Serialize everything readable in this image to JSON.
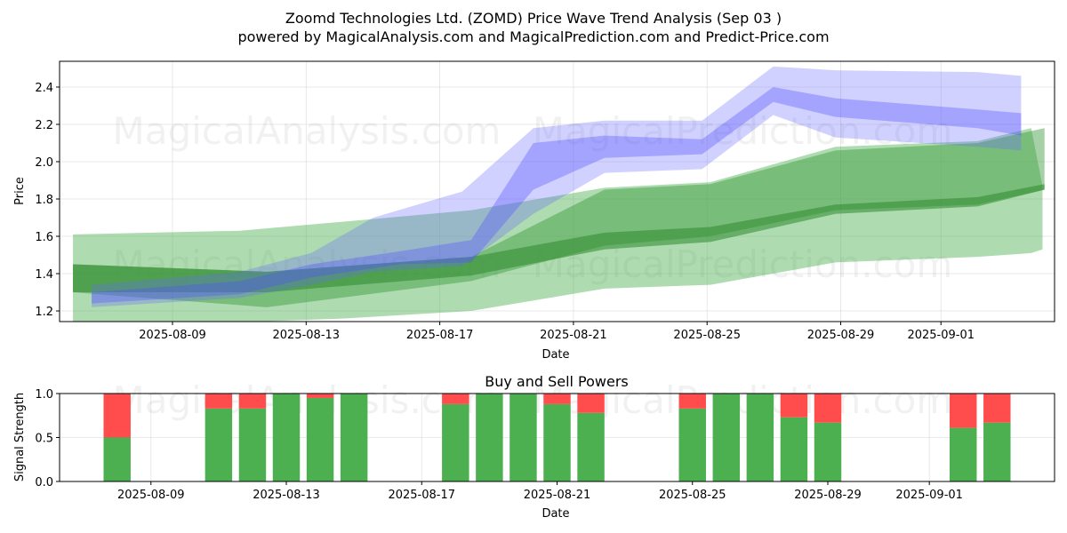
{
  "title": "Zoomd Technologies Ltd. (ZOMD) Price Wave Trend Analysis (Sep 03 )",
  "subtitle": "powered by MagicalAnalysis.com and MagicalPrediction.com and Predict-Price.com",
  "watermarks": [
    "MagicalAnalysis.com",
    "MagicalPrediction.com"
  ],
  "chart_data": [
    {
      "type": "area",
      "title": "",
      "xlabel": "Date",
      "ylabel": "Price",
      "x_units": "days since 2025-08-09",
      "xlim": [
        -3.38,
        26.4
      ],
      "ylim": [
        1.143,
        2.538
      ],
      "grid": true,
      "xticks": [
        {
          "v": 0,
          "label": "2025-08-09"
        },
        {
          "v": 4,
          "label": "2025-08-13"
        },
        {
          "v": 8,
          "label": "2025-08-17"
        },
        {
          "v": 12,
          "label": "2025-08-21"
        },
        {
          "v": 16,
          "label": "2025-08-25"
        },
        {
          "v": 20,
          "label": "2025-08-29"
        },
        {
          "v": 23,
          "label": "2025-09-01"
        }
      ],
      "yticks": [
        {
          "v": 1.2,
          "label": "1.2"
        },
        {
          "v": 1.4,
          "label": "1.4"
        },
        {
          "v": 1.6,
          "label": "1.6"
        },
        {
          "v": 1.8,
          "label": "1.8"
        },
        {
          "v": 2.0,
          "label": "2.0"
        },
        {
          "v": 2.2,
          "label": "2.2"
        },
        {
          "v": 2.4,
          "label": "2.4"
        }
      ],
      "bands": [
        {
          "name": "green-wide",
          "color": "#4caf50",
          "opacity": 0.45,
          "x": [
            -2.98,
            2.02,
            5.21,
            8.94,
            12.93,
            16.1,
            19.84,
            24.1,
            25.7,
            26.04
          ],
          "upper": [
            1.61,
            1.63,
            1.68,
            1.74,
            1.86,
            1.89,
            2.08,
            2.11,
            2.18,
            1.87
          ],
          "lower": [
            1.14,
            1.14,
            1.16,
            1.2,
            1.32,
            1.34,
            1.46,
            1.49,
            1.51,
            1.53
          ]
        },
        {
          "name": "green-mid",
          "color": "#3a9a3a",
          "opacity": 0.45,
          "x": [
            -2.98,
            2.82,
            8.94,
            12.93,
            16.1,
            19.84,
            24.1,
            26.1
          ],
          "upper": [
            1.45,
            1.41,
            1.49,
            1.85,
            1.88,
            2.06,
            2.1,
            2.18
          ],
          "lower": [
            1.3,
            1.22,
            1.36,
            1.55,
            1.6,
            1.74,
            1.77,
            1.85
          ]
        },
        {
          "name": "green-core",
          "color": "#2e8b2e",
          "opacity": 0.55,
          "x": [
            -2.98,
            2.82,
            8.94,
            12.93,
            16.1,
            19.84,
            24.1,
            26.1
          ],
          "upper": [
            1.45,
            1.41,
            1.49,
            1.62,
            1.65,
            1.77,
            1.81,
            1.88
          ],
          "lower": [
            1.3,
            1.3,
            1.39,
            1.53,
            1.57,
            1.72,
            1.76,
            1.85
          ]
        },
        {
          "name": "blue-wide",
          "color": "#6666ff",
          "opacity": 0.3,
          "x": [
            -2.42,
            2.02,
            4.15,
            6.01,
            8.67,
            10.8,
            12.93,
            15.85,
            17.98,
            19.84,
            24.1,
            25.4
          ],
          "upper": [
            1.34,
            1.41,
            1.51,
            1.7,
            1.84,
            2.18,
            2.22,
            2.22,
            2.51,
            2.49,
            2.48,
            2.46
          ],
          "lower": [
            1.22,
            1.27,
            1.34,
            1.41,
            1.44,
            1.72,
            1.94,
            1.96,
            2.25,
            2.13,
            2.08,
            2.06
          ]
        },
        {
          "name": "blue-core",
          "color": "#5050ff",
          "opacity": 0.35,
          "x": [
            -2.42,
            2.02,
            4.15,
            6.81,
            8.94,
            10.8,
            12.93,
            15.85,
            17.98,
            19.84,
            24.1,
            25.4
          ],
          "upper": [
            1.3,
            1.36,
            1.45,
            1.52,
            1.58,
            2.1,
            2.14,
            2.12,
            2.4,
            2.34,
            2.28,
            2.26
          ],
          "lower": [
            1.24,
            1.29,
            1.38,
            1.45,
            1.46,
            1.85,
            2.02,
            2.04,
            2.32,
            2.24,
            2.18,
            2.14
          ]
        }
      ]
    },
    {
      "type": "bar",
      "title": "Buy and Sell Powers",
      "xlabel": "Date",
      "ylabel": "Signal Strength",
      "x_units": "days since 2025-08-09",
      "xlim": [
        -2.7,
        26.7
      ],
      "ylim": [
        0,
        1
      ],
      "xticks": [
        {
          "v": 0,
          "label": "2025-08-09"
        },
        {
          "v": 4,
          "label": "2025-08-13"
        },
        {
          "v": 8,
          "label": "2025-08-17"
        },
        {
          "v": 12,
          "label": "2025-08-21"
        },
        {
          "v": 16,
          "label": "2025-08-25"
        },
        {
          "v": 20,
          "label": "2025-08-29"
        },
        {
          "v": 23,
          "label": "2025-09-01"
        }
      ],
      "yticks": [
        {
          "v": 0,
          "label": "0.0"
        },
        {
          "v": 0.5,
          "label": "0.5"
        },
        {
          "v": 1.0,
          "label": "1.0"
        }
      ],
      "buy_color": "#4caf50",
      "sell_color": "#ff4d4d",
      "x": [
        -1,
        2,
        3,
        4,
        5,
        6,
        9,
        10,
        11,
        12,
        13,
        16,
        17,
        18,
        19,
        20,
        24,
        25
      ],
      "buy": [
        0.5,
        0.83,
        0.83,
        1.0,
        0.95,
        1.0,
        0.88,
        1.0,
        1.0,
        0.88,
        0.78,
        0.83,
        1.0,
        1.0,
        0.73,
        0.67,
        0.61,
        0.67
      ]
    }
  ]
}
